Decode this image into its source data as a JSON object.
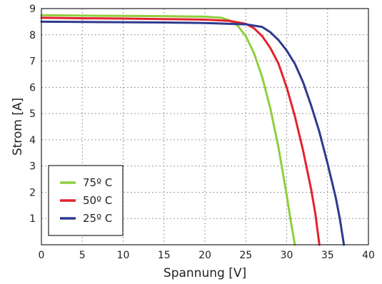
{
  "chart_data": {
    "type": "line",
    "xlabel": "Spannung [V]",
    "ylabel": "Strom [A]",
    "xlim": [
      0,
      40
    ],
    "ylim": [
      0,
      9
    ],
    "xticks": [
      0,
      5,
      10,
      15,
      20,
      25,
      30,
      35,
      40
    ],
    "yticks": [
      1,
      2,
      3,
      4,
      5,
      6,
      7,
      8,
      9
    ],
    "grid": true,
    "legend_position": "bottom-left",
    "series": [
      {
        "name": "75º C",
        "color": "#8fce3e",
        "x": [
          0,
          5,
          10,
          15,
          20,
          22,
          23,
          24,
          25,
          26,
          27,
          28,
          29,
          29.5,
          30,
          30.5,
          31
        ],
        "y": [
          8.75,
          8.73,
          8.72,
          8.71,
          8.69,
          8.65,
          8.55,
          8.35,
          7.95,
          7.3,
          6.4,
          5.2,
          3.7,
          2.8,
          1.9,
          0.9,
          0
        ]
      },
      {
        "name": "50º C",
        "color": "#e4222e",
        "x": [
          0,
          5,
          10,
          15,
          20,
          23,
          25,
          26,
          27,
          28,
          29,
          30,
          31,
          32,
          33,
          33.5,
          34
        ],
        "y": [
          8.65,
          8.63,
          8.62,
          8.6,
          8.58,
          8.53,
          8.42,
          8.25,
          7.95,
          7.5,
          6.9,
          6.0,
          4.9,
          3.6,
          2.1,
          1.2,
          0
        ]
      },
      {
        "name": "25º C",
        "color": "#2e3a8e",
        "x": [
          0,
          5,
          10,
          15,
          20,
          25,
          27,
          28,
          29,
          30,
          31,
          32,
          33,
          34,
          35,
          36,
          36.5,
          37
        ],
        "y": [
          8.5,
          8.49,
          8.48,
          8.47,
          8.45,
          8.4,
          8.3,
          8.1,
          7.8,
          7.4,
          6.9,
          6.2,
          5.3,
          4.3,
          3.1,
          1.8,
          1.0,
          0
        ]
      }
    ]
  }
}
